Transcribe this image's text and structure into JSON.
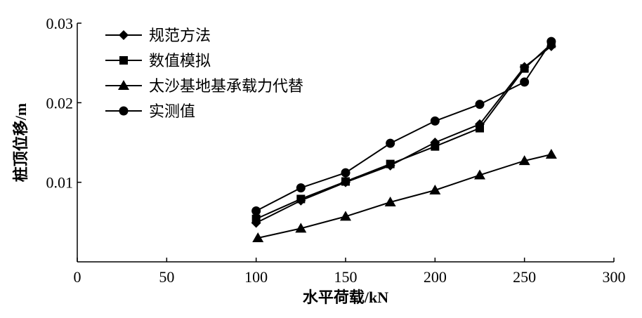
{
  "chart_data": {
    "type": "line",
    "title": "",
    "xlabel": "水平荷载/kN",
    "ylabel": "桩顶位移/m",
    "xlim": [
      0,
      300
    ],
    "ylim": [
      0,
      0.03
    ],
    "x_ticks": [
      "0",
      "50",
      "100",
      "150",
      "200",
      "250",
      "300"
    ],
    "y_ticks": [
      "0.01",
      "0.02",
      "0.03"
    ],
    "x_tick_values": [
      0,
      50,
      100,
      150,
      200,
      250,
      300
    ],
    "y_tick_values": [
      0.01,
      0.02,
      0.03
    ],
    "grid": false,
    "legend_position": "top-left",
    "series": [
      {
        "name": "规范方法",
        "marker": "diamond",
        "x": [
          100,
          125,
          150,
          175,
          200,
          225,
          250,
          265
        ],
        "y": [
          0.0049,
          0.0077,
          0.01,
          0.0121,
          0.015,
          0.0173,
          0.0245,
          0.0271
        ]
      },
      {
        "name": "数值模拟",
        "marker": "square",
        "x": [
          100,
          125,
          150,
          175,
          200,
          225,
          250,
          265
        ],
        "y": [
          0.0054,
          0.0079,
          0.0101,
          0.0123,
          0.0145,
          0.0168,
          0.0243,
          0.0274
        ]
      },
      {
        "name": "太沙基地基承载力代替",
        "marker": "triangle",
        "x": [
          101,
          125,
          150,
          175,
          200,
          225,
          250,
          265
        ],
        "y": [
          0.003,
          0.0042,
          0.0057,
          0.0075,
          0.009,
          0.0109,
          0.0127,
          0.0135
        ]
      },
      {
        "name": "实测值",
        "marker": "circle",
        "x": [
          100,
          125,
          150,
          175,
          200,
          225,
          250,
          265
        ],
        "y": [
          0.0064,
          0.0093,
          0.0112,
          0.0149,
          0.0177,
          0.0198,
          0.0226,
          0.0277
        ]
      }
    ]
  }
}
